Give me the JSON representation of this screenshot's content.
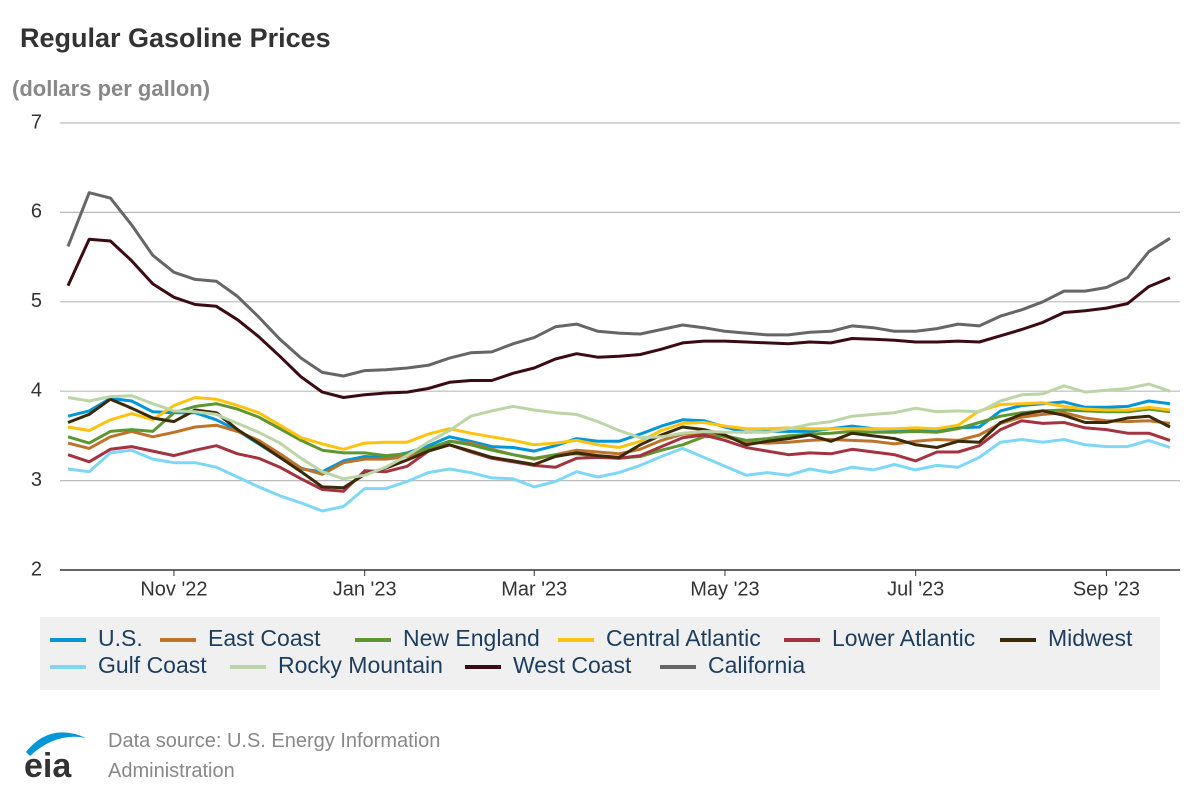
{
  "chart_data": {
    "type": "line",
    "title": "Regular Gasoline Prices",
    "subtitle": "(dollars per gallon)",
    "source": "Data source: U.S. Energy Information Administration",
    "logo": "eia",
    "categories": [
      null,
      null,
      null,
      null,
      null,
      "Nov '22",
      null,
      null,
      null,
      null,
      null,
      null,
      null,
      null,
      "Jan '23",
      null,
      null,
      null,
      null,
      null,
      null,
      null,
      "Mar '23",
      null,
      null,
      null,
      null,
      null,
      null,
      null,
      null,
      "May '23",
      null,
      null,
      null,
      null,
      null,
      null,
      null,
      null,
      "Jul '23",
      null,
      null,
      null,
      null,
      null,
      null,
      null,
      null,
      "Sep '23",
      null,
      null,
      null
    ],
    "ylim": [
      2,
      7
    ],
    "yticks": [
      2,
      3,
      4,
      5,
      6,
      7
    ],
    "grid": true,
    "series": [
      {
        "name": "U.S.",
        "color": "#0096d7",
        "values": [
          3.72,
          3.78,
          3.92,
          3.89,
          3.77,
          3.76,
          3.76,
          3.68,
          3.56,
          3.41,
          3.26,
          3.13,
          3.1,
          3.22,
          3.27,
          3.26,
          3.31,
          3.39,
          3.49,
          3.44,
          3.38,
          3.37,
          3.33,
          3.39,
          3.47,
          3.44,
          3.44,
          3.52,
          3.61,
          3.68,
          3.67,
          3.6,
          3.54,
          3.55,
          3.55,
          3.55,
          3.58,
          3.61,
          3.58,
          3.57,
          3.56,
          3.57,
          3.59,
          3.6,
          3.78,
          3.84,
          3.86,
          3.88,
          3.82,
          3.82,
          3.83,
          3.89,
          3.86
        ]
      },
      {
        "name": "East Coast",
        "color": "#bd732a",
        "values": [
          3.42,
          3.36,
          3.49,
          3.55,
          3.49,
          3.54,
          3.6,
          3.62,
          3.55,
          3.45,
          3.3,
          3.14,
          3.07,
          3.2,
          3.24,
          3.24,
          3.27,
          3.35,
          3.44,
          3.42,
          3.35,
          3.29,
          3.24,
          3.29,
          3.34,
          3.32,
          3.3,
          3.35,
          3.45,
          3.52,
          3.53,
          3.49,
          3.43,
          3.42,
          3.43,
          3.45,
          3.46,
          3.45,
          3.44,
          3.41,
          3.44,
          3.46,
          3.45,
          3.51,
          3.64,
          3.71,
          3.74,
          3.76,
          3.7,
          3.67,
          3.66,
          3.67,
          3.64
        ]
      },
      {
        "name": "New England",
        "color": "#5d9732",
        "values": [
          3.49,
          3.42,
          3.55,
          3.57,
          3.55,
          3.76,
          3.83,
          3.86,
          3.8,
          3.71,
          3.58,
          3.45,
          3.34,
          3.31,
          3.31,
          3.28,
          3.3,
          3.36,
          3.44,
          3.4,
          3.34,
          3.29,
          3.25,
          3.29,
          3.3,
          3.27,
          3.25,
          3.27,
          3.34,
          3.4,
          3.49,
          3.5,
          3.45,
          3.47,
          3.5,
          3.52,
          3.53,
          3.55,
          3.54,
          3.54,
          3.55,
          3.54,
          3.58,
          3.65,
          3.72,
          3.76,
          3.78,
          3.79,
          3.78,
          3.77,
          3.77,
          3.8,
          3.77
        ]
      },
      {
        "name": "Central Atlantic",
        "color": "#ffc20e",
        "values": [
          3.6,
          3.56,
          3.68,
          3.75,
          3.68,
          3.84,
          3.93,
          3.91,
          3.84,
          3.76,
          3.62,
          3.48,
          3.41,
          3.35,
          3.42,
          3.43,
          3.43,
          3.52,
          3.58,
          3.53,
          3.49,
          3.45,
          3.4,
          3.42,
          3.45,
          3.4,
          3.37,
          3.44,
          3.56,
          3.64,
          3.65,
          3.61,
          3.58,
          3.58,
          3.59,
          3.58,
          3.58,
          3.58,
          3.58,
          3.58,
          3.59,
          3.58,
          3.62,
          3.78,
          3.85,
          3.86,
          3.87,
          3.83,
          3.8,
          3.79,
          3.79,
          3.82,
          3.79
        ]
      },
      {
        "name": "Lower Atlantic",
        "color": "#a33340",
        "values": [
          3.29,
          3.21,
          3.35,
          3.38,
          3.33,
          3.28,
          3.34,
          3.39,
          3.3,
          3.25,
          3.15,
          3.02,
          2.9,
          2.88,
          3.11,
          3.1,
          3.16,
          3.33,
          3.4,
          3.32,
          3.25,
          3.21,
          3.17,
          3.15,
          3.25,
          3.26,
          3.25,
          3.28,
          3.38,
          3.48,
          3.51,
          3.45,
          3.37,
          3.33,
          3.29,
          3.31,
          3.3,
          3.35,
          3.32,
          3.29,
          3.22,
          3.32,
          3.32,
          3.39,
          3.57,
          3.67,
          3.64,
          3.65,
          3.59,
          3.57,
          3.53,
          3.53,
          3.45
        ]
      },
      {
        "name": "Midwest",
        "color": "#3b2a08",
        "values": [
          3.65,
          3.74,
          3.91,
          3.81,
          3.7,
          3.66,
          3.79,
          3.76,
          3.57,
          3.42,
          3.26,
          3.1,
          2.93,
          2.92,
          3.07,
          3.14,
          3.23,
          3.33,
          3.4,
          3.33,
          3.26,
          3.22,
          3.18,
          3.27,
          3.31,
          3.28,
          3.26,
          3.4,
          3.51,
          3.6,
          3.57,
          3.51,
          3.4,
          3.44,
          3.47,
          3.51,
          3.44,
          3.53,
          3.5,
          3.47,
          3.4,
          3.37,
          3.44,
          3.43,
          3.65,
          3.74,
          3.78,
          3.73,
          3.65,
          3.65,
          3.7,
          3.72,
          3.6
        ]
      },
      {
        "name": "Gulf Coast",
        "color": "#7fd7f7",
        "values": [
          3.13,
          3.1,
          3.31,
          3.34,
          3.24,
          3.2,
          3.2,
          3.15,
          3.04,
          2.93,
          2.83,
          2.75,
          2.66,
          2.71,
          2.91,
          2.91,
          2.99,
          3.09,
          3.13,
          3.09,
          3.03,
          3.02,
          2.93,
          2.99,
          3.1,
          3.04,
          3.09,
          3.17,
          3.27,
          3.36,
          3.26,
          3.16,
          3.06,
          3.09,
          3.06,
          3.13,
          3.09,
          3.15,
          3.12,
          3.18,
          3.12,
          3.17,
          3.15,
          3.26,
          3.43,
          3.46,
          3.43,
          3.46,
          3.4,
          3.38,
          3.38,
          3.45,
          3.37
        ]
      },
      {
        "name": "Rocky Mountain",
        "color": "#bcd5a7",
        "values": [
          3.93,
          3.89,
          3.94,
          3.95,
          3.86,
          3.78,
          3.77,
          3.74,
          3.64,
          3.54,
          3.42,
          3.25,
          3.1,
          3.02,
          3.06,
          3.15,
          3.28,
          3.43,
          3.56,
          3.72,
          3.78,
          3.83,
          3.79,
          3.76,
          3.74,
          3.66,
          3.56,
          3.48,
          3.49,
          3.53,
          3.55,
          3.54,
          3.54,
          3.54,
          3.58,
          3.63,
          3.66,
          3.72,
          3.74,
          3.76,
          3.81,
          3.77,
          3.78,
          3.77,
          3.89,
          3.96,
          3.97,
          4.06,
          3.99,
          4.01,
          4.03,
          4.08,
          4.0
        ]
      },
      {
        "name": "West Coast",
        "color": "#3b0b13",
        "values": [
          5.18,
          5.7,
          5.68,
          5.46,
          5.2,
          5.05,
          4.97,
          4.95,
          4.8,
          4.61,
          4.39,
          4.16,
          3.99,
          3.93,
          3.96,
          3.98,
          3.99,
          4.03,
          4.1,
          4.12,
          4.12,
          4.2,
          4.26,
          4.36,
          4.42,
          4.38,
          4.39,
          4.41,
          4.47,
          4.54,
          4.56,
          4.56,
          4.55,
          4.54,
          4.53,
          4.55,
          4.54,
          4.59,
          4.58,
          4.57,
          4.55,
          4.55,
          4.56,
          4.55,
          4.62,
          4.69,
          4.77,
          4.88,
          4.9,
          4.93,
          4.98,
          5.17,
          5.27
        ]
      },
      {
        "name": "California",
        "color": "#666666",
        "values": [
          5.62,
          6.22,
          6.16,
          5.86,
          5.52,
          5.33,
          5.25,
          5.23,
          5.06,
          4.83,
          4.58,
          4.37,
          4.21,
          4.17,
          4.23,
          4.24,
          4.26,
          4.29,
          4.37,
          4.43,
          4.44,
          4.53,
          4.6,
          4.72,
          4.75,
          4.67,
          4.65,
          4.64,
          4.69,
          4.74,
          4.71,
          4.67,
          4.65,
          4.63,
          4.63,
          4.66,
          4.67,
          4.73,
          4.71,
          4.67,
          4.67,
          4.7,
          4.75,
          4.73,
          4.84,
          4.91,
          5.0,
          5.12,
          5.12,
          5.16,
          5.27,
          5.56,
          5.71
        ]
      }
    ]
  }
}
